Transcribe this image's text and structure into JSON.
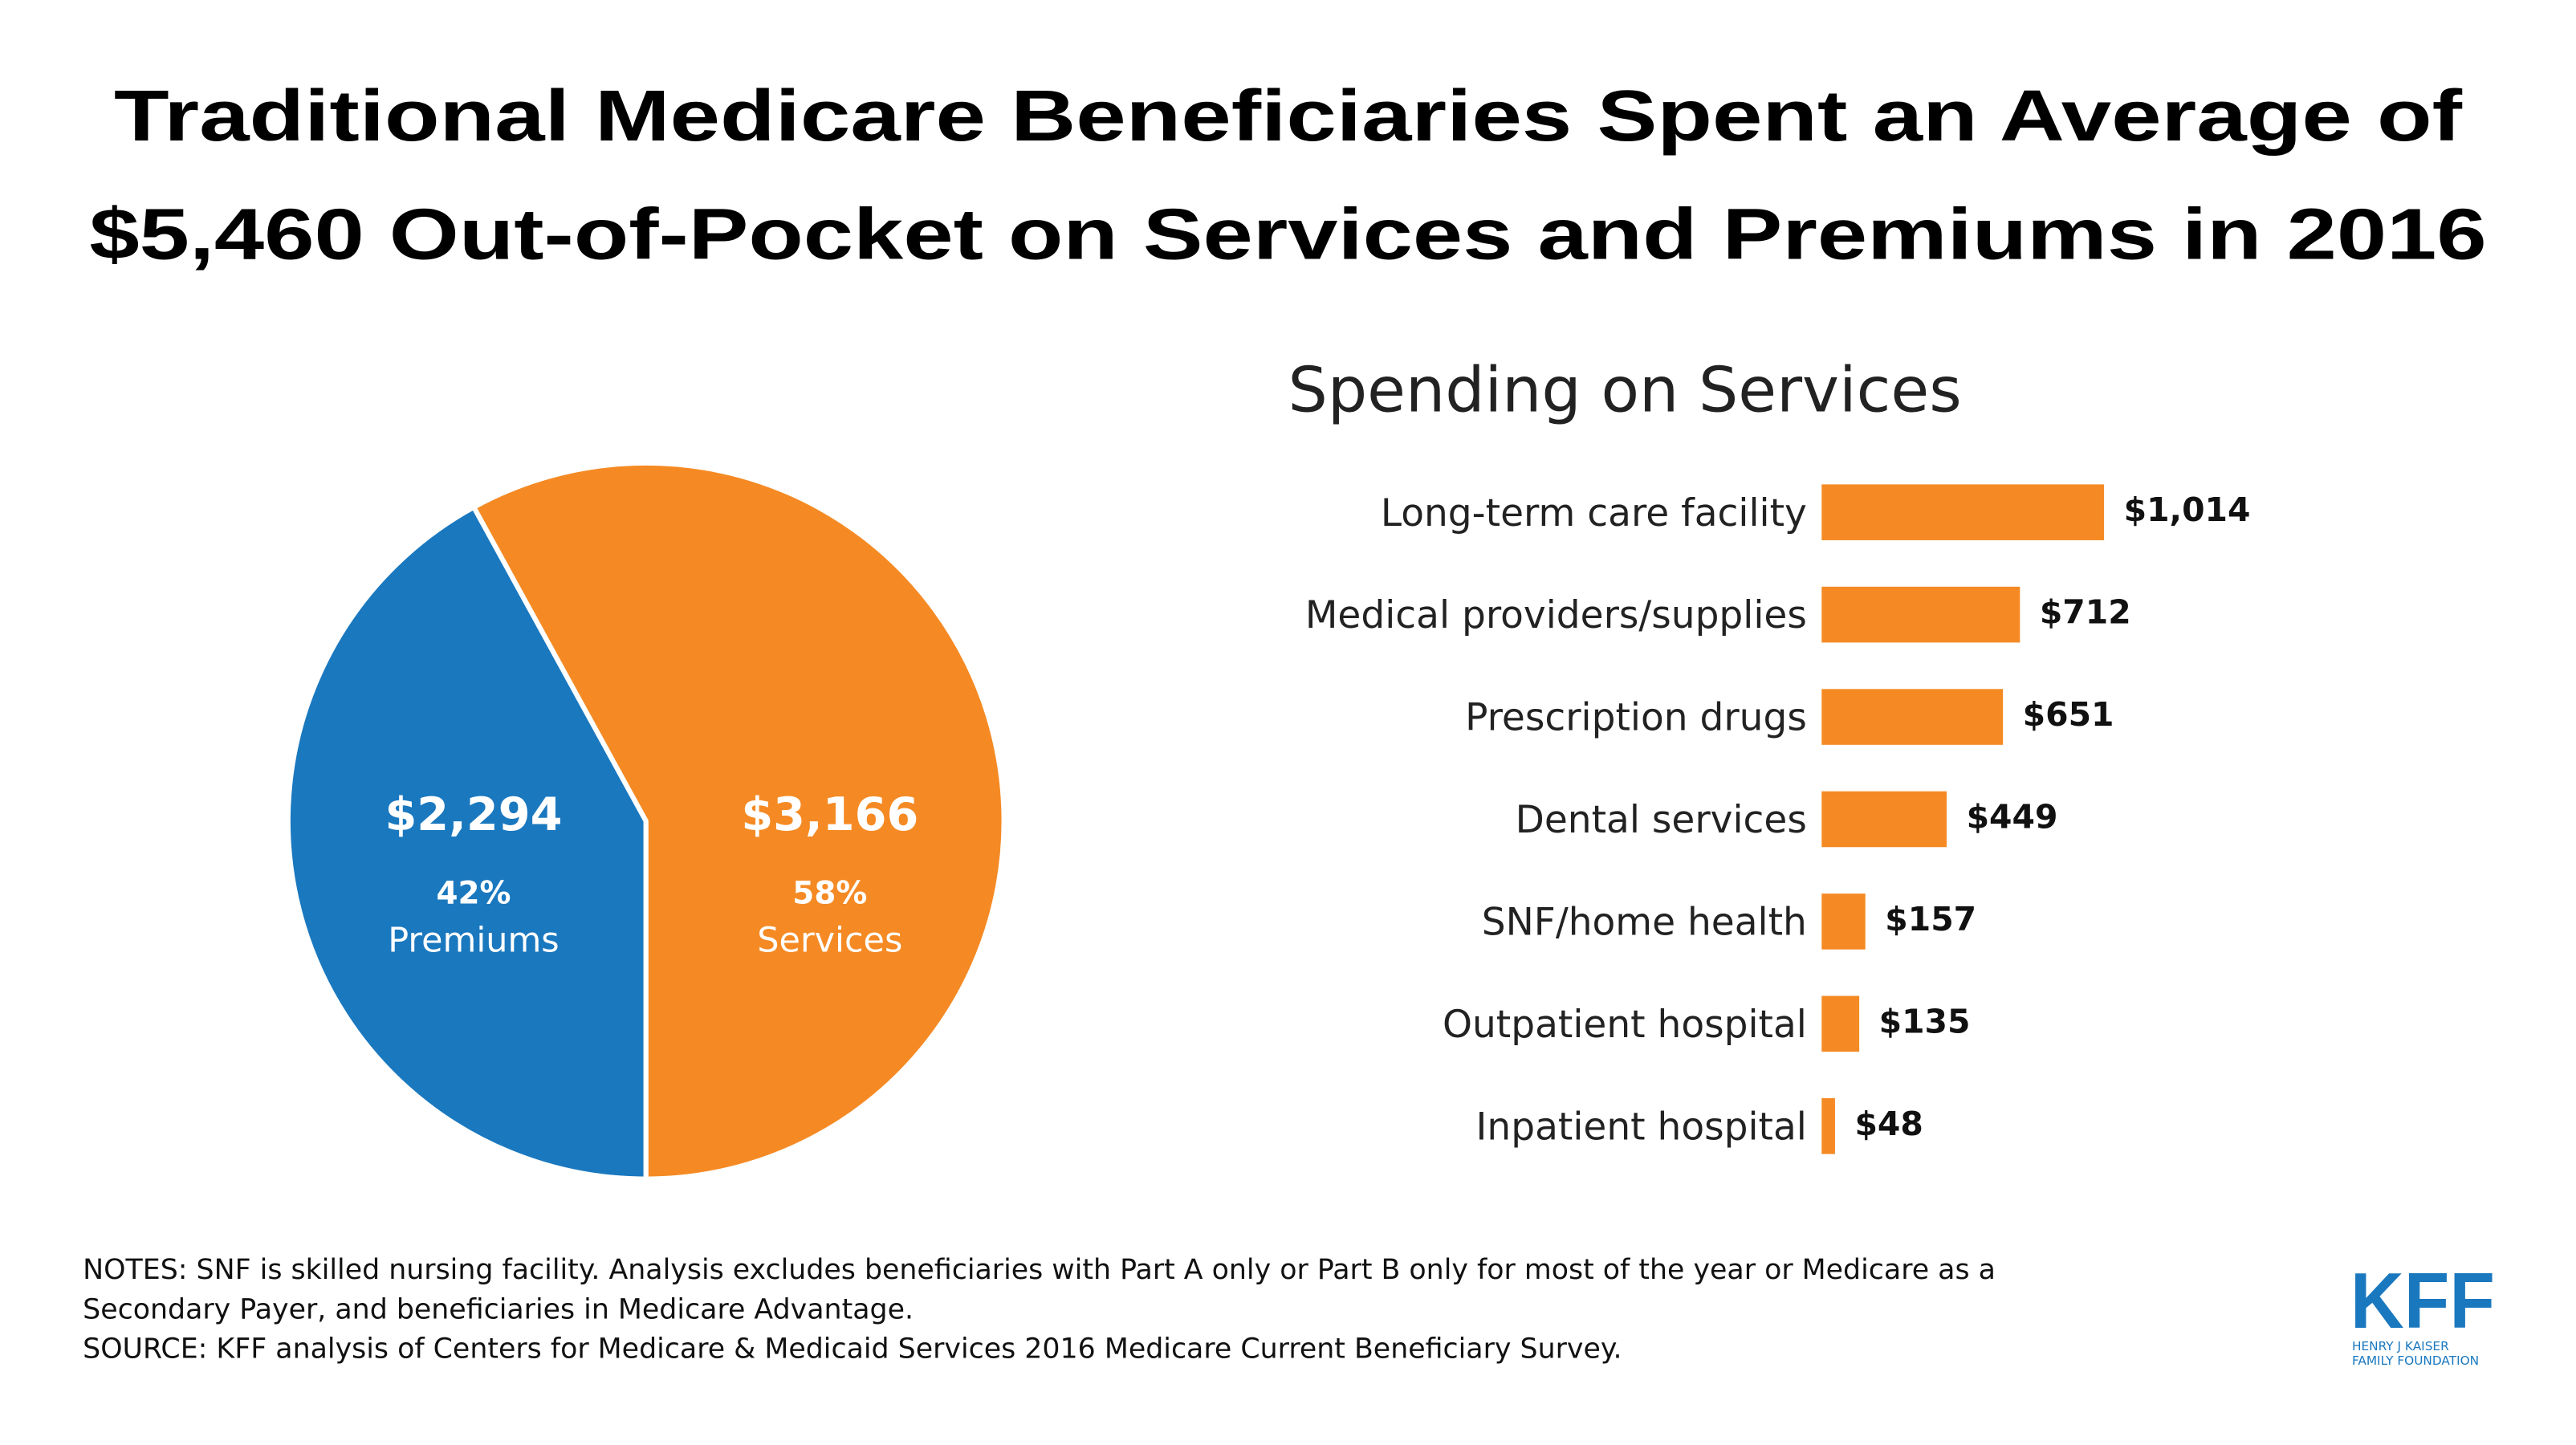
{
  "title": [
    "Traditional Medicare Beneficiaries Spent an Average of",
    "$5,460 Out-of-Pocket on Services and Premiums in 2016"
  ],
  "chart_data": [
    {
      "type": "pie",
      "categories": [
        "Premiums",
        "Services"
      ],
      "values": [
        2294,
        3166
      ],
      "value_labels": [
        "$2,294",
        "$3,166"
      ],
      "percents": [
        42,
        58
      ],
      "percent_labels": [
        "42%",
        "58%"
      ],
      "colors": [
        "#1a78bf",
        "#f58a24"
      ]
    },
    {
      "type": "bar",
      "title": "Spending on Services",
      "orientation": "horizontal",
      "color": "#f58a24",
      "categories": [
        "Long-term care facility",
        "Medical providers/supplies",
        "Prescription drugs",
        "Dental services",
        "SNF/home health",
        "Outpatient hospital",
        "Inpatient hospital"
      ],
      "values": [
        1014,
        712,
        651,
        449,
        157,
        135,
        48
      ],
      "value_labels": [
        "$1,014",
        "$712",
        "$651",
        "$449",
        "$157",
        "$135",
        "$48"
      ]
    }
  ],
  "notes": [
    "NOTES: SNF is skilled nursing facility. Analysis excludes beneficiaries with Part A only or Part B only for most of the year or Medicare as a",
    "Secondary Payer, and beneficiaries in Medicare Advantage.",
    "SOURCE: KFF analysis of Centers for Medicare & Medicaid Services 2016 Medicare Current Beneficiary Survey."
  ],
  "logo": {
    "name": "KFF",
    "lines": [
      "HENRY J KAISER",
      "FAMILY FOUNDATION"
    ]
  }
}
